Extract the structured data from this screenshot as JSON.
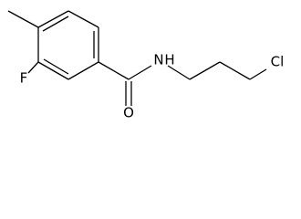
{
  "atoms": {
    "fluorine": "F",
    "oxygen": "O",
    "nitrogen": "N",
    "hydrogen": "H",
    "chlorine": "Cl"
  }
}
